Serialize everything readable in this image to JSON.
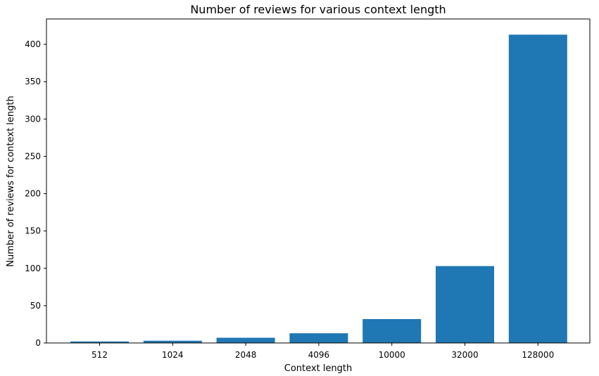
{
  "chart_data": {
    "type": "bar",
    "title": "Number of reviews for various context length",
    "xlabel": "Context length",
    "ylabel": "Number of reviews for context length",
    "categories": [
      "512",
      "1024",
      "2048",
      "4096",
      "10000",
      "32000",
      "128000"
    ],
    "values": [
      2,
      3,
      7,
      13,
      32,
      103,
      413
    ],
    "ylim": [
      0,
      434
    ],
    "yticks": [
      0,
      50,
      100,
      150,
      200,
      250,
      300,
      350,
      400
    ],
    "bar_color": "#1f77b4",
    "grid": false
  }
}
